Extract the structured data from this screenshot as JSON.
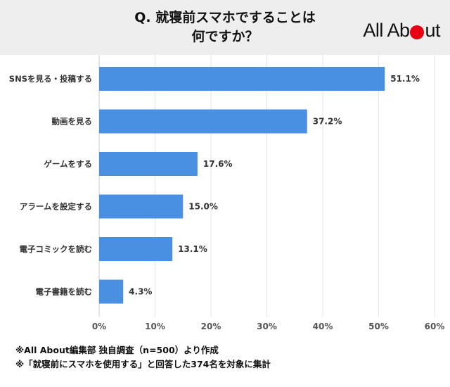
{
  "title": {
    "line1": "Q. 就寝前スマホですることは",
    "line2": "何ですか？"
  },
  "logo": {
    "text_before": "All Ab",
    "text_after": "ut",
    "accent_color": "#e60012"
  },
  "chart_data": {
    "type": "bar",
    "orientation": "horizontal",
    "categories": [
      "SNSを見る・投稿する",
      "動画を見る",
      "ゲームをする",
      "アラームを設定する",
      "電子コミックを読む",
      "電子書籍を読む"
    ],
    "values": [
      51.1,
      37.2,
      17.6,
      15.0,
      13.1,
      4.3
    ],
    "value_labels": [
      "51.1%",
      "37.2%",
      "17.6%",
      "15.0%",
      "13.1%",
      "4.3%"
    ],
    "x_ticks": [
      "0%",
      "10%",
      "20%",
      "30%",
      "40%",
      "50%",
      "60%"
    ],
    "xlim": [
      0,
      60
    ],
    "bar_color": "#4a90e2",
    "grid": true,
    "legend": "none"
  },
  "footnotes": [
    "※All About編集部 独自調査（n=500）より作成",
    "※「就寝前にスマホを使用する」と回答した374名を対象に集計"
  ]
}
